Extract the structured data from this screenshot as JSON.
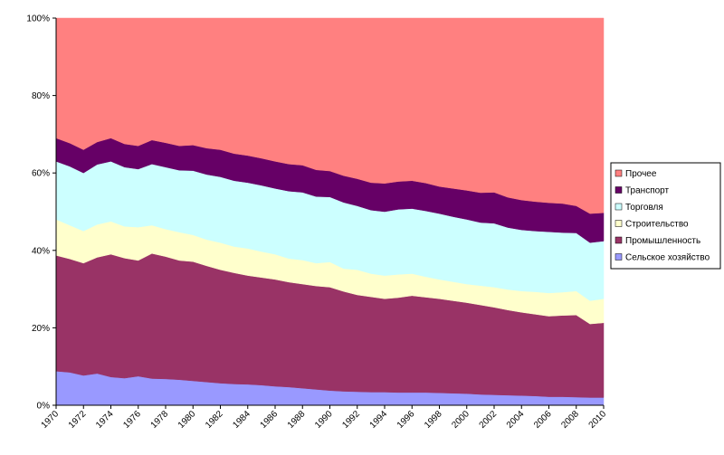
{
  "chart_data": {
    "type": "stacked-area",
    "x": [
      1970,
      1971,
      1972,
      1973,
      1974,
      1975,
      1976,
      1977,
      1978,
      1979,
      1980,
      1981,
      1982,
      1983,
      1984,
      1985,
      1986,
      1987,
      1988,
      1989,
      1990,
      1991,
      1992,
      1993,
      1994,
      1995,
      1996,
      1997,
      1998,
      1999,
      2000,
      2001,
      2002,
      2003,
      2004,
      2005,
      2006,
      2007,
      2008,
      2009,
      2010
    ],
    "xlim": [
      1970,
      2010
    ],
    "xticks": [
      1970,
      1972,
      1974,
      1976,
      1978,
      1980,
      1982,
      1984,
      1986,
      1988,
      1990,
      1992,
      1994,
      1996,
      1998,
      2000,
      2002,
      2004,
      2006,
      2008,
      2010
    ],
    "ylim": [
      0,
      100
    ],
    "yticks": [
      {
        "value": 0,
        "label": "0%"
      },
      {
        "value": 20,
        "label": "20%"
      },
      {
        "value": 40,
        "label": "40%"
      },
      {
        "value": 60,
        "label": "60%"
      },
      {
        "value": 80,
        "label": "80%"
      },
      {
        "value": 100,
        "label": "100%"
      }
    ],
    "legend": "right",
    "series": [
      {
        "name": "Сельское хозяйство",
        "color": "#9999ff",
        "values": [
          8.8,
          8.5,
          7.7,
          8.2,
          7.3,
          7.0,
          7.5,
          6.9,
          6.8,
          6.6,
          6.3,
          6.0,
          5.7,
          5.5,
          5.4,
          5.2,
          4.9,
          4.7,
          4.4,
          4.1,
          3.8,
          3.6,
          3.5,
          3.4,
          3.4,
          3.3,
          3.3,
          3.3,
          3.2,
          3.1,
          3.0,
          2.8,
          2.7,
          2.6,
          2.5,
          2.4,
          2.2,
          2.2,
          2.1,
          2.0,
          2.0
        ]
      },
      {
        "name": "Промышленность",
        "color": "#993366",
        "values": [
          29.9,
          29.3,
          29.0,
          30.0,
          31.7,
          31.0,
          29.9,
          32.3,
          31.6,
          30.8,
          30.8,
          30.0,
          29.3,
          28.7,
          28.1,
          27.8,
          27.6,
          27.1,
          26.9,
          26.7,
          26.7,
          25.8,
          25.0,
          24.6,
          24.1,
          24.5,
          25.0,
          24.6,
          24.3,
          23.9,
          23.5,
          23.1,
          22.6,
          22.0,
          21.5,
          21.1,
          20.8,
          21.0,
          21.2,
          19.0,
          19.3
        ]
      },
      {
        "name": "Строительство",
        "color": "#ffffcc",
        "values": [
          9.3,
          8.7,
          8.3,
          8.5,
          8.5,
          8.2,
          8.6,
          7.3,
          7.1,
          7.3,
          6.9,
          6.8,
          7.0,
          6.8,
          7.0,
          6.7,
          6.5,
          6.1,
          6.2,
          5.9,
          6.5,
          5.9,
          6.5,
          6.0,
          6.0,
          6.0,
          5.7,
          5.3,
          5.0,
          4.9,
          4.8,
          5.0,
          5.2,
          5.3,
          5.5,
          5.8,
          6.0,
          6.0,
          6.2,
          6.0,
          6.2
        ]
      },
      {
        "name": "Торговля",
        "color": "#ccffff",
        "values": [
          15.0,
          15.2,
          15.0,
          15.5,
          15.5,
          15.3,
          15.0,
          15.8,
          16.0,
          16.0,
          16.6,
          16.8,
          17.0,
          17.0,
          17.0,
          17.1,
          17.0,
          17.4,
          17.5,
          17.2,
          16.8,
          17.1,
          16.5,
          16.4,
          16.5,
          16.8,
          16.8,
          17.0,
          17.0,
          16.8,
          16.7,
          16.3,
          16.5,
          16.0,
          15.8,
          15.7,
          15.8,
          15.4,
          15.0,
          15.0,
          14.9
        ]
      },
      {
        "name": "Транспорт",
        "color": "#660066",
        "values": [
          6.0,
          6.0,
          6.0,
          5.8,
          6.0,
          6.0,
          6.0,
          6.2,
          6.3,
          6.3,
          6.6,
          6.8,
          7.0,
          7.0,
          7.0,
          7.0,
          7.0,
          7.0,
          7.0,
          6.9,
          6.7,
          6.9,
          7.0,
          7.1,
          7.3,
          7.2,
          7.2,
          7.2,
          7.0,
          7.3,
          7.5,
          7.7,
          8.0,
          7.8,
          7.7,
          7.6,
          7.5,
          7.5,
          7.0,
          7.5,
          7.3
        ]
      },
      {
        "name": "Прочее",
        "color": "#ff8080",
        "values": [
          31.0,
          32.3,
          34.0,
          32.0,
          31.0,
          32.5,
          33.0,
          31.5,
          32.2,
          33.0,
          32.8,
          33.6,
          34.0,
          35.0,
          35.5,
          36.2,
          37.0,
          37.7,
          38.0,
          39.2,
          39.5,
          40.7,
          41.5,
          42.5,
          42.7,
          42.2,
          42.0,
          42.6,
          43.5,
          44.0,
          44.5,
          45.1,
          45.0,
          46.3,
          47.0,
          47.4,
          47.7,
          47.9,
          48.5,
          50.5,
          50.3
        ]
      }
    ]
  }
}
